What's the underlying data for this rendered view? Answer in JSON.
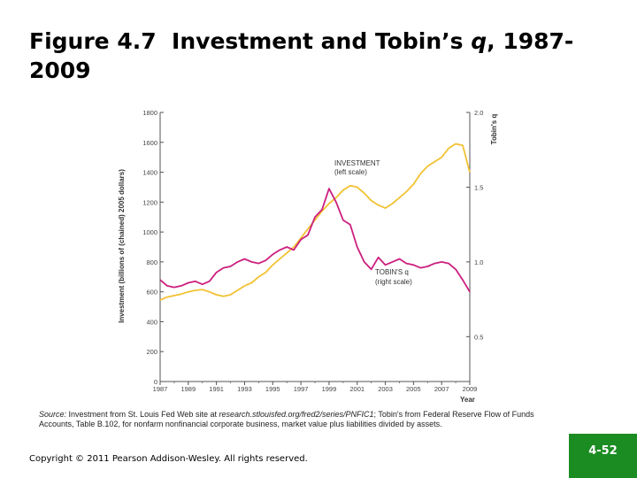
{
  "slide": {
    "title_label": "Figure 4.7",
    "title_text_pre": "Investment and Tobin’s",
    "title_q": "q",
    "title_text_post": ", 1987-2009",
    "source_label": "Source:",
    "source_text_1": "Investment from St. Louis Fed Web site at",
    "source_url": "research.stlouisfed.org/fred2/series/PNFIC1",
    "source_text_2": "; Tobin's from Federal Reserve Flow of Funds Accounts, Table B.102, for nonfarm nonfinancial corporate business, market value plus liabilities divided by assets.",
    "copyright": "Copyright © 2011 Pearson Addison-Wesley. All rights reserved.",
    "page_number": "4-52"
  },
  "colors": {
    "investment": "#f2c233",
    "tobins_q": "#cc1f7e",
    "axis": "#555555",
    "page_badge": "#1b8c22"
  },
  "chart_data": {
    "type": "line",
    "xlabel": "Year",
    "ylabel_left": "Investment (billions of (chained) 2005 dollars)",
    "ylabel_right": "Tobin's q",
    "x_ticks": [
      "1987",
      "1989",
      "1991",
      "1993",
      "1995",
      "1997",
      "1999",
      "2001",
      "2003",
      "2005",
      "2007",
      "2009"
    ],
    "ylim_left": [
      0,
      1800
    ],
    "y_ticks_left": [
      "0",
      "200",
      "400",
      "600",
      "800",
      "1000",
      "1200",
      "1400",
      "1600",
      "1800"
    ],
    "ylim_right": [
      0.2,
      2.0
    ],
    "y_ticks_right": [
      "0.5",
      "1.0",
      "1.5",
      "2.0"
    ],
    "annotations": {
      "investment_line1": "INVESTMENT",
      "investment_line2": "(left scale)",
      "tobins_line1": "TOBIN'S q",
      "tobins_line2": "(right scale)"
    },
    "series": [
      {
        "key": "investment",
        "axis": "left",
        "x": [
          1987,
          1987.5,
          1988,
          1988.5,
          1989,
          1989.5,
          1990,
          1990.5,
          1991,
          1991.5,
          1992,
          1992.5,
          1993,
          1993.5,
          1994,
          1994.5,
          1995,
          1995.5,
          1996,
          1996.5,
          1997,
          1997.5,
          1998,
          1998.5,
          1999,
          1999.5,
          2000,
          2000.5,
          2001,
          2001.5,
          2002,
          2002.5,
          2003,
          2003.5,
          2004,
          2004.5,
          2005,
          2005.5,
          2006,
          2006.5,
          2007,
          2007.5,
          2008,
          2008.5,
          2009
        ],
        "values": [
          545,
          565,
          575,
          585,
          600,
          610,
          615,
          600,
          580,
          570,
          580,
          610,
          640,
          660,
          700,
          730,
          780,
          820,
          860,
          900,
          960,
          1020,
          1080,
          1140,
          1190,
          1230,
          1280,
          1310,
          1300,
          1260,
          1210,
          1180,
          1160,
          1190,
          1230,
          1270,
          1320,
          1390,
          1440,
          1470,
          1500,
          1560,
          1590,
          1580,
          1400
        ]
      },
      {
        "key": "tobins_q",
        "axis": "right",
        "x": [
          1987,
          1987.5,
          1988,
          1988.5,
          1989,
          1989.5,
          1990,
          1990.5,
          1991,
          1991.5,
          1992,
          1992.5,
          1993,
          1993.5,
          1994,
          1994.5,
          1995,
          1995.5,
          1996,
          1996.5,
          1997,
          1997.5,
          1998,
          1998.5,
          1999,
          1999.5,
          2000,
          2000.5,
          2001,
          2001.5,
          2002,
          2002.5,
          2003,
          2003.5,
          2004,
          2004.5,
          2005,
          2005.5,
          2006,
          2006.5,
          2007,
          2007.5,
          2008,
          2008.5,
          2009
        ],
        "values": [
          0.88,
          0.84,
          0.83,
          0.84,
          0.86,
          0.87,
          0.85,
          0.87,
          0.93,
          0.96,
          0.97,
          1.0,
          1.02,
          1.0,
          0.99,
          1.01,
          1.05,
          1.08,
          1.1,
          1.08,
          1.15,
          1.18,
          1.3,
          1.35,
          1.49,
          1.4,
          1.28,
          1.25,
          1.1,
          1.0,
          0.95,
          1.03,
          0.98,
          1.0,
          1.02,
          0.99,
          0.98,
          0.96,
          0.97,
          0.99,
          1.0,
          0.99,
          0.95,
          0.88,
          0.8
        ]
      }
    ]
  }
}
